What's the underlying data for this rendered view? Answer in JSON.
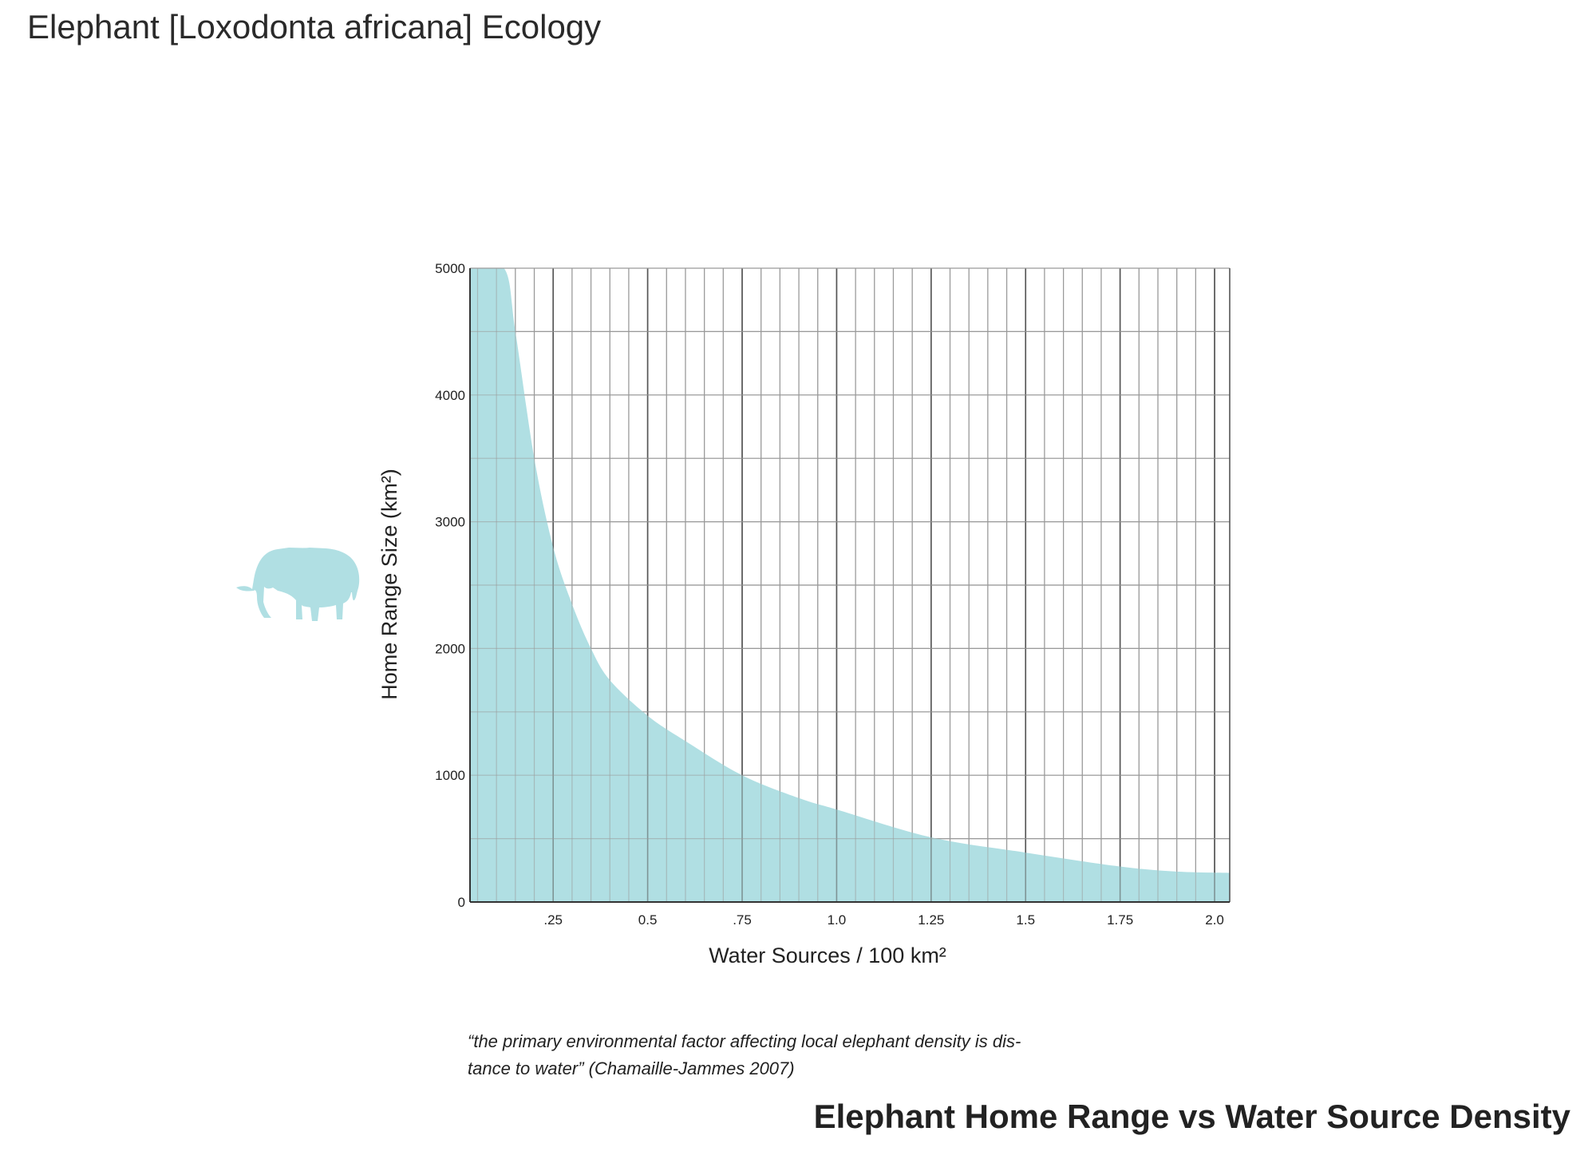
{
  "page_title": "Elephant [Loxodonta africana] Ecology",
  "quote": {
    "line1": "“the primary environmental factor affecting local elephant density is dis-",
    "line2": "tance to water” (Chamaille-Jammes 2007)"
  },
  "icons": {
    "elephant": "elephant-silhouette-icon"
  },
  "colors": {
    "fill": "#b0dfe3",
    "grid_major": "#555555",
    "grid_minor": "#9a9a9a"
  },
  "chart_data": {
    "type": "area",
    "title": "Elephant Home Range vs Water Source Density",
    "xlabel": "Water Sources / 100 km²",
    "ylabel": "Home Range Size (km²)",
    "xlim": [
      0.03,
      2.04
    ],
    "ylim": [
      0,
      5000
    ],
    "x_ticks": [
      {
        "value": 0.25,
        "label": ".25"
      },
      {
        "value": 0.5,
        "label": "0.5"
      },
      {
        "value": 0.75,
        "label": ".75"
      },
      {
        "value": 1.0,
        "label": "1.0"
      },
      {
        "value": 1.25,
        "label": "1.25"
      },
      {
        "value": 1.5,
        "label": "1.5"
      },
      {
        "value": 1.75,
        "label": "1.75"
      },
      {
        "value": 2.0,
        "label": "2.0"
      }
    ],
    "y_ticks": [
      {
        "value": 0,
        "label": "0"
      },
      {
        "value": 1000,
        "label": "1000"
      },
      {
        "value": 2000,
        "label": "2000"
      },
      {
        "value": 3000,
        "label": "3000"
      },
      {
        "value": 4000,
        "label": "4000"
      },
      {
        "value": 5000,
        "label": "5000"
      }
    ],
    "grid": true,
    "x": [
      0.03,
      0.12,
      0.15,
      0.2,
      0.25,
      0.3,
      0.35,
      0.4,
      0.5,
      0.6,
      0.75,
      0.9,
      1.0,
      1.25,
      1.5,
      1.75,
      1.9,
      2.04
    ],
    "y": [
      5000,
      5000,
      4500,
      3500,
      2800,
      2350,
      2000,
      1750,
      1470,
      1270,
      1000,
      820,
      730,
      510,
      390,
      280,
      240,
      230
    ]
  }
}
